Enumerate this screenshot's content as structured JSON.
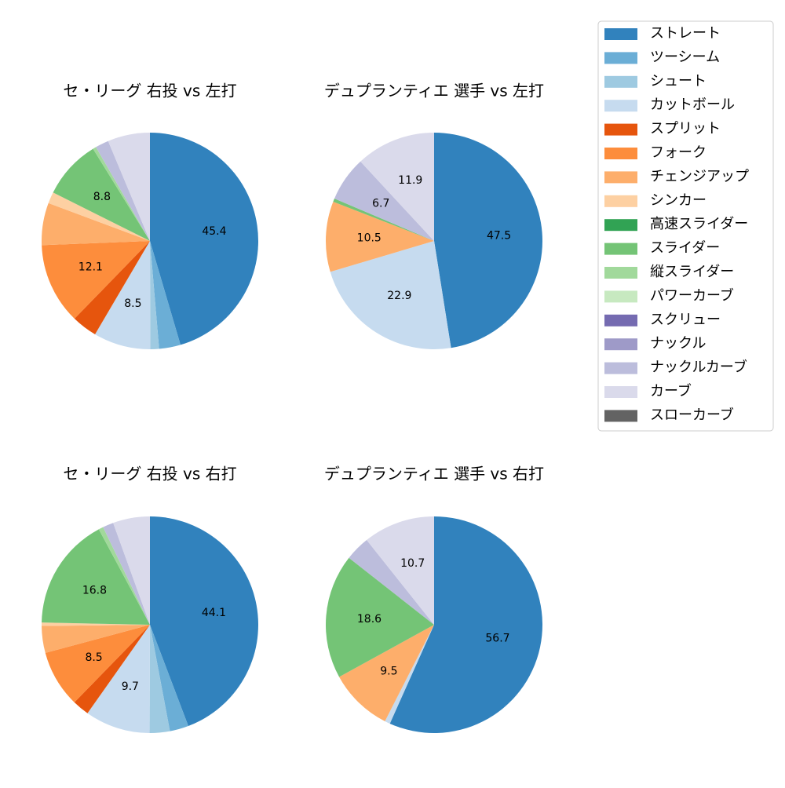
{
  "chart_data": [
    {
      "type": "pie",
      "title": "セ・リーグ 右投 vs 左打",
      "values": [
        45.4,
        3.2,
        1.3,
        8.5,
        3.8,
        12.1,
        6.3,
        1.7,
        0,
        8.8,
        0.5,
        0,
        0,
        0,
        2.0,
        6.3,
        0
      ],
      "value_labels": [
        "45.4",
        null,
        null,
        "8.5",
        null,
        "12.1",
        null,
        null,
        null,
        "8.8",
        null,
        null,
        null,
        null,
        null,
        null,
        null
      ]
    },
    {
      "type": "pie",
      "title": "デュプランティエ 選手 vs 左打",
      "values": [
        47.5,
        0,
        0,
        22.9,
        0,
        0,
        10.5,
        0,
        0,
        0.5,
        0,
        0,
        0,
        0,
        6.7,
        11.9,
        0
      ],
      "value_labels": [
        "47.5",
        null,
        null,
        "22.9",
        null,
        null,
        "10.5",
        null,
        null,
        null,
        null,
        null,
        null,
        null,
        "6.7",
        "11.9",
        null
      ]
    },
    {
      "type": "pie",
      "title": "セ・リーグ 右投 vs 右打",
      "values": [
        44.1,
        2.8,
        3.0,
        9.7,
        2.5,
        8.5,
        4.0,
        0.5,
        0,
        16.8,
        0.7,
        0,
        0,
        0,
        1.6,
        5.5,
        0
      ],
      "value_labels": [
        "44.1",
        null,
        null,
        "9.7",
        null,
        "8.5",
        null,
        null,
        null,
        "16.8",
        null,
        null,
        null,
        null,
        null,
        null,
        null
      ]
    },
    {
      "type": "pie",
      "title": "デュプランティエ 選手 vs 右打",
      "values": [
        56.7,
        0,
        0,
        0.8,
        0,
        0,
        9.5,
        0,
        0,
        18.6,
        0,
        0,
        0,
        0,
        3.7,
        10.7,
        0
      ],
      "value_labels": [
        "56.7",
        null,
        null,
        null,
        null,
        null,
        "9.5",
        null,
        null,
        "18.6",
        null,
        null,
        null,
        null,
        null,
        "10.7",
        null
      ]
    }
  ],
  "legend": {
    "categories": [
      "ストレート",
      "ツーシーム",
      "シュート",
      "カットボール",
      "スプリット",
      "フォーク",
      "チェンジアップ",
      "シンカー",
      "高速スライダー",
      "スライダー",
      "縦スライダー",
      "パワーカーブ",
      "スクリュー",
      "ナックル",
      "ナックルカーブ",
      "カーブ",
      "スローカーブ"
    ],
    "colors": [
      "#3182bd",
      "#6baed6",
      "#9ecae1",
      "#c6dbef",
      "#e6550d",
      "#fd8d3c",
      "#fdae6b",
      "#fdd0a2",
      "#31a354",
      "#74c476",
      "#a1d99b",
      "#c7e9c0",
      "#756bb1",
      "#9e9ac8",
      "#bcbddc",
      "#dadaeb",
      "#636363"
    ]
  }
}
